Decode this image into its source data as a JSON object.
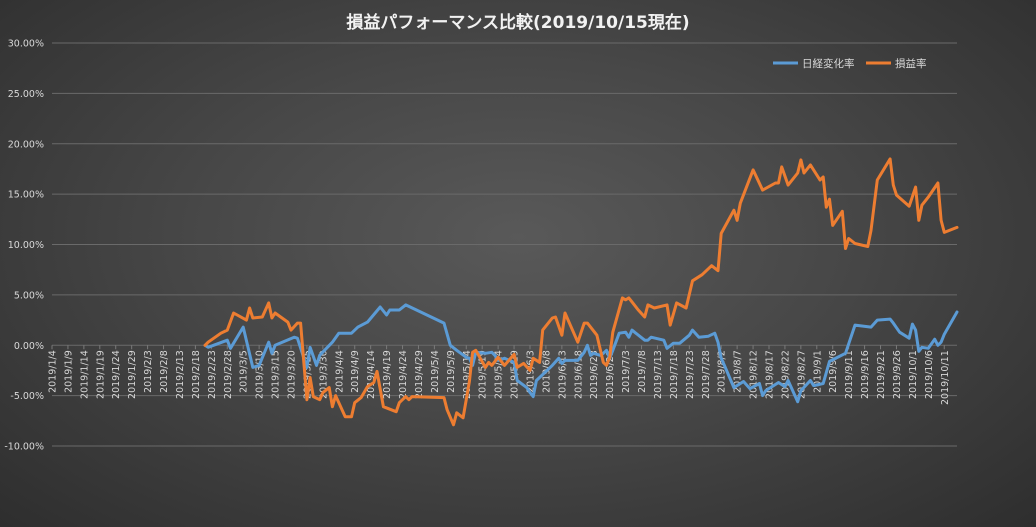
{
  "chart_data": {
    "type": "line",
    "title": "損益パフォーマンス比較(2019/10/15現在)",
    "xlabel": "",
    "ylabel": "",
    "ylim": [
      -10,
      30
    ],
    "y_ticks": [
      "30.00%",
      "25.00%",
      "20.00%",
      "15.00%",
      "10.00%",
      "5.00%",
      "0.00%",
      "-5.00%",
      "-10.00%"
    ],
    "y_tick_values": [
      30,
      25,
      20,
      15,
      10,
      5,
      0,
      -5,
      -10
    ],
    "x_range": [
      "2019-01-04",
      "2019-10-15"
    ],
    "x_tick_labels": [
      "2019/1/4",
      "2019/1/9",
      "2019/1/14",
      "2019/1/19",
      "2019/1/24",
      "2019/1/29",
      "2019/2/3",
      "2019/2/8",
      "2019/2/13",
      "2019/2/18",
      "2019/2/23",
      "2019/2/28",
      "2019/3/5",
      "2019/3/10",
      "2019/3/15",
      "2019/3/20",
      "2019/3/25",
      "2019/3/30",
      "2019/4/4",
      "2019/4/9",
      "2019/4/14",
      "2019/4/19",
      "2019/4/24",
      "2019/4/29",
      "2019/5/4",
      "2019/5/9",
      "2019/5/14",
      "2019/5/19",
      "2019/5/24",
      "2019/5/29",
      "2019/6/3",
      "2019/6/8",
      "2019/6/13",
      "2019/6/18",
      "2019/6/23",
      "2019/6/28",
      "2019/7/3",
      "2019/7/8",
      "2019/7/13",
      "2019/7/18",
      "2019/7/23",
      "2019/7/28",
      "2019/8/2",
      "2019/8/7",
      "2019/8/12",
      "2019/8/17",
      "2019/8/22",
      "2019/8/27",
      "2019/9/1",
      "2019/9/6",
      "2019/9/11",
      "2019/9/16",
      "2019/9/21",
      "2019/9/26",
      "2019/10/1",
      "2019/10/6",
      "2019/10/11"
    ],
    "grid": true,
    "legend_position": "top-right",
    "series": [
      {
        "name": "日経変化率",
        "color": "#5b9bd5",
        "points": [
          [
            "2019-02-21",
            0.0
          ],
          [
            "2019-02-22",
            -0.2
          ],
          [
            "2019-02-28",
            0.5
          ],
          [
            "2019-03-01",
            -0.3
          ],
          [
            "2019-03-05",
            1.8
          ],
          [
            "2019-03-08",
            -2.2
          ],
          [
            "2019-03-10",
            -2.0
          ],
          [
            "2019-03-13",
            0.3
          ],
          [
            "2019-03-14",
            -0.8
          ],
          [
            "2019-03-15",
            0.0
          ],
          [
            "2019-03-21",
            0.8
          ],
          [
            "2019-03-22",
            0.7
          ],
          [
            "2019-03-25",
            -2.2
          ],
          [
            "2019-03-26",
            -0.2
          ],
          [
            "2019-03-28",
            -2.0
          ],
          [
            "2019-03-29",
            -1.0
          ],
          [
            "2019-04-02",
            0.3
          ],
          [
            "2019-04-04",
            1.2
          ],
          [
            "2019-04-08",
            1.2
          ],
          [
            "2019-04-10",
            1.8
          ],
          [
            "2019-04-13",
            2.3
          ],
          [
            "2019-04-17",
            3.8
          ],
          [
            "2019-04-19",
            3.0
          ],
          [
            "2019-04-20",
            3.5
          ],
          [
            "2019-04-23",
            3.5
          ],
          [
            "2019-04-25",
            4.0
          ],
          [
            "2019-05-07",
            2.2
          ],
          [
            "2019-05-09",
            0.0
          ],
          [
            "2019-05-11",
            -0.5
          ],
          [
            "2019-05-14",
            -1.2
          ],
          [
            "2019-05-15",
            -1.3
          ],
          [
            "2019-05-16",
            -2.0
          ],
          [
            "2019-05-17",
            -0.7
          ],
          [
            "2019-05-20",
            -0.8
          ],
          [
            "2019-05-22",
            -0.7
          ],
          [
            "2019-05-23",
            -1.0
          ],
          [
            "2019-05-24",
            -1.5
          ],
          [
            "2019-05-26",
            -1.3
          ],
          [
            "2019-05-29",
            -1.7
          ],
          [
            "2019-05-30",
            -3.5
          ],
          [
            "2019-06-02",
            -4.2
          ],
          [
            "2019-06-03",
            -4.7
          ],
          [
            "2019-06-04",
            -5.1
          ],
          [
            "2019-06-05",
            -3.5
          ],
          [
            "2019-06-06",
            -3.2
          ],
          [
            "2019-06-10",
            -2.0
          ],
          [
            "2019-06-12",
            -1.3
          ],
          [
            "2019-06-13",
            -1.8
          ],
          [
            "2019-06-14",
            -1.5
          ],
          [
            "2019-06-18",
            -1.5
          ],
          [
            "2019-06-20",
            -0.7
          ],
          [
            "2019-06-21",
            0.0
          ],
          [
            "2019-06-22",
            -1.0
          ],
          [
            "2019-06-23",
            -0.8
          ],
          [
            "2019-06-25",
            -1.0
          ],
          [
            "2019-06-26",
            -0.8
          ],
          [
            "2019-06-27",
            -0.5
          ],
          [
            "2019-06-28",
            -1.3
          ],
          [
            "2019-06-29",
            -0.5
          ],
          [
            "2019-07-01",
            1.2
          ],
          [
            "2019-07-03",
            1.3
          ],
          [
            "2019-07-04",
            0.8
          ],
          [
            "2019-07-05",
            1.5
          ],
          [
            "2019-07-09",
            0.5
          ],
          [
            "2019-07-10",
            0.5
          ],
          [
            "2019-07-11",
            0.8
          ],
          [
            "2019-07-15",
            0.5
          ],
          [
            "2019-07-16",
            -0.3
          ],
          [
            "2019-07-18",
            0.2
          ],
          [
            "2019-07-20",
            0.2
          ],
          [
            "2019-07-23",
            1.0
          ],
          [
            "2019-07-24",
            1.5
          ],
          [
            "2019-07-26",
            0.8
          ],
          [
            "2019-07-29",
            0.9
          ],
          [
            "2019-07-31",
            1.2
          ],
          [
            "2019-08-01",
            0.3
          ],
          [
            "2019-08-02",
            -1.3
          ],
          [
            "2019-08-03",
            -2.0
          ],
          [
            "2019-08-06",
            -4.2
          ],
          [
            "2019-08-09",
            -3.6
          ],
          [
            "2019-08-11",
            -4.3
          ],
          [
            "2019-08-14",
            -3.8
          ],
          [
            "2019-08-15",
            -5.0
          ],
          [
            "2019-08-16",
            -4.5
          ],
          [
            "2019-08-20",
            -3.7
          ],
          [
            "2019-08-22",
            -4.1
          ],
          [
            "2019-08-23",
            -3.5
          ],
          [
            "2019-08-26",
            -5.6
          ],
          [
            "2019-08-27",
            -4.5
          ],
          [
            "2019-08-30",
            -3.5
          ],
          [
            "2019-08-31",
            -4.0
          ],
          [
            "2019-09-03",
            -3.8
          ],
          [
            "2019-09-05",
            -1.6
          ],
          [
            "2019-09-10",
            -0.8
          ],
          [
            "2019-09-13",
            2.0
          ],
          [
            "2019-09-18",
            1.8
          ],
          [
            "2019-09-20",
            2.5
          ],
          [
            "2019-09-24",
            2.6
          ],
          [
            "2019-09-25",
            2.2
          ],
          [
            "2019-09-27",
            1.3
          ],
          [
            "2019-09-30",
            0.7
          ],
          [
            "2019-10-01",
            2.1
          ],
          [
            "2019-10-02",
            1.5
          ],
          [
            "2019-10-03",
            -0.6
          ],
          [
            "2019-10-04",
            -0.2
          ],
          [
            "2019-10-06",
            -0.3
          ],
          [
            "2019-10-08",
            0.6
          ],
          [
            "2019-10-09",
            0.0
          ],
          [
            "2019-10-10",
            0.3
          ],
          [
            "2019-10-11",
            1.1
          ],
          [
            "2019-10-15",
            3.3
          ]
        ]
      },
      {
        "name": "損益率",
        "color": "#ed7d31",
        "points": [
          [
            "2019-02-21",
            0.0
          ],
          [
            "2019-02-22",
            0.3
          ],
          [
            "2019-02-26",
            1.2
          ],
          [
            "2019-02-28",
            1.5
          ],
          [
            "2019-03-02",
            3.2
          ],
          [
            "2019-03-06",
            2.5
          ],
          [
            "2019-03-07",
            3.7
          ],
          [
            "2019-03-08",
            2.7
          ],
          [
            "2019-03-11",
            2.8
          ],
          [
            "2019-03-13",
            4.2
          ],
          [
            "2019-03-14",
            2.7
          ],
          [
            "2019-03-15",
            3.2
          ],
          [
            "2019-03-19",
            2.3
          ],
          [
            "2019-03-20",
            1.5
          ],
          [
            "2019-03-22",
            2.2
          ],
          [
            "2019-03-23",
            2.2
          ],
          [
            "2019-03-25",
            -5.4
          ],
          [
            "2019-03-26",
            -3.2
          ],
          [
            "2019-03-27",
            -5.1
          ],
          [
            "2019-03-29",
            -5.4
          ],
          [
            "2019-03-30",
            -4.7
          ],
          [
            "2019-04-01",
            -4.2
          ],
          [
            "2019-04-02",
            -6.1
          ],
          [
            "2019-04-03",
            -5.0
          ],
          [
            "2019-04-06",
            -7.1
          ],
          [
            "2019-04-08",
            -7.1
          ],
          [
            "2019-04-09",
            -5.7
          ],
          [
            "2019-04-11",
            -5.2
          ],
          [
            "2019-04-13",
            -4.1
          ],
          [
            "2019-04-15",
            -3.7
          ],
          [
            "2019-04-16",
            -2.6
          ],
          [
            "2019-04-18",
            -6.1
          ],
          [
            "2019-04-22",
            -6.6
          ],
          [
            "2019-04-23",
            -5.7
          ],
          [
            "2019-04-25",
            -5.1
          ],
          [
            "2019-04-26",
            -5.4
          ],
          [
            "2019-04-27",
            -5.1
          ],
          [
            "2019-05-07",
            -5.2
          ],
          [
            "2019-05-08",
            -6.4
          ],
          [
            "2019-05-10",
            -7.9
          ],
          [
            "2019-05-11",
            -6.7
          ],
          [
            "2019-05-13",
            -7.2
          ],
          [
            "2019-05-15",
            -3.6
          ],
          [
            "2019-05-16",
            -0.7
          ],
          [
            "2019-05-17",
            -0.5
          ],
          [
            "2019-05-20",
            -2.2
          ],
          [
            "2019-05-21",
            -1.7
          ],
          [
            "2019-05-22",
            -2.0
          ],
          [
            "2019-05-24",
            -1.2
          ],
          [
            "2019-05-26",
            -2.0
          ],
          [
            "2019-05-29",
            -0.9
          ],
          [
            "2019-05-30",
            -2.2
          ],
          [
            "2019-06-01",
            -1.8
          ],
          [
            "2019-06-03",
            -2.5
          ],
          [
            "2019-06-04",
            -1.3
          ],
          [
            "2019-06-06",
            -1.7
          ],
          [
            "2019-06-07",
            1.5
          ],
          [
            "2019-06-10",
            2.7
          ],
          [
            "2019-06-11",
            2.8
          ],
          [
            "2019-06-13",
            1.0
          ],
          [
            "2019-06-14",
            3.2
          ],
          [
            "2019-06-18",
            0.3
          ],
          [
            "2019-06-20",
            2.2
          ],
          [
            "2019-06-21",
            2.2
          ],
          [
            "2019-06-24",
            1.0
          ],
          [
            "2019-06-26",
            -1.7
          ],
          [
            "2019-06-27",
            -2.0
          ],
          [
            "2019-06-28",
            -1.2
          ],
          [
            "2019-06-29",
            1.3
          ],
          [
            "2019-07-02",
            4.7
          ],
          [
            "2019-07-03",
            4.5
          ],
          [
            "2019-07-04",
            4.7
          ],
          [
            "2019-07-05",
            4.3
          ],
          [
            "2019-07-07",
            3.5
          ],
          [
            "2019-07-09",
            2.8
          ],
          [
            "2019-07-10",
            4.0
          ],
          [
            "2019-07-12",
            3.7
          ],
          [
            "2019-07-16",
            4.0
          ],
          [
            "2019-07-17",
            2.0
          ],
          [
            "2019-07-19",
            4.2
          ],
          [
            "2019-07-22",
            3.7
          ],
          [
            "2019-07-24",
            6.4
          ],
          [
            "2019-07-27",
            7.0
          ],
          [
            "2019-07-30",
            7.9
          ],
          [
            "2019-08-01",
            7.4
          ],
          [
            "2019-08-02",
            11.1
          ],
          [
            "2019-08-06",
            13.4
          ],
          [
            "2019-08-07",
            12.4
          ],
          [
            "2019-08-08",
            14.1
          ],
          [
            "2019-08-12",
            17.4
          ],
          [
            "2019-08-15",
            15.4
          ],
          [
            "2019-08-19",
            16.1
          ],
          [
            "2019-08-20",
            16.1
          ],
          [
            "2019-08-21",
            17.7
          ],
          [
            "2019-08-23",
            15.9
          ],
          [
            "2019-08-26",
            17.1
          ],
          [
            "2019-08-27",
            18.4
          ],
          [
            "2019-08-28",
            17.1
          ],
          [
            "2019-08-30",
            17.9
          ],
          [
            "2019-09-02",
            16.4
          ],
          [
            "2019-09-03",
            16.7
          ],
          [
            "2019-09-04",
            13.7
          ],
          [
            "2019-09-05",
            14.5
          ],
          [
            "2019-09-06",
            11.9
          ],
          [
            "2019-09-09",
            13.3
          ],
          [
            "2019-09-10",
            9.6
          ],
          [
            "2019-09-11",
            10.6
          ],
          [
            "2019-09-13",
            10.1
          ],
          [
            "2019-09-17",
            9.8
          ],
          [
            "2019-09-18",
            11.4
          ],
          [
            "2019-09-20",
            16.4
          ],
          [
            "2019-09-24",
            18.5
          ],
          [
            "2019-09-25",
            15.9
          ],
          [
            "2019-09-26",
            14.9
          ],
          [
            "2019-09-30",
            13.8
          ],
          [
            "2019-10-02",
            15.7
          ],
          [
            "2019-10-03",
            12.4
          ],
          [
            "2019-10-04",
            13.9
          ],
          [
            "2019-10-06",
            14.7
          ],
          [
            "2019-10-09",
            16.1
          ],
          [
            "2019-10-10",
            12.4
          ],
          [
            "2019-10-11",
            11.2
          ],
          [
            "2019-10-15",
            11.7
          ]
        ]
      }
    ]
  }
}
